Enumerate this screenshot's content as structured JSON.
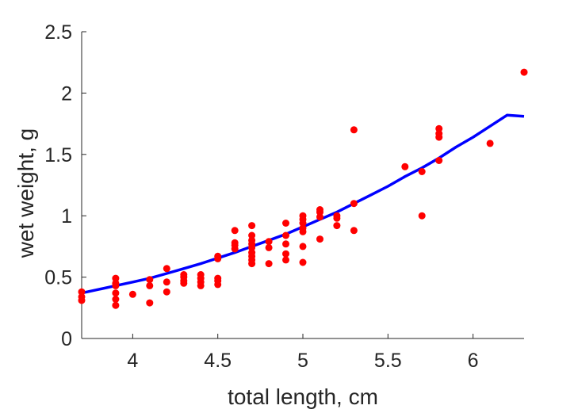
{
  "chart_data": {
    "type": "scatter",
    "xlabel": "total length, cm",
    "ylabel": "wet weight, g",
    "xlim": [
      3.7,
      6.3
    ],
    "ylim": [
      0,
      2.5
    ],
    "xticks": [
      4,
      4.5,
      5,
      5.5,
      6
    ],
    "xtick_labels": [
      "4",
      "4.5",
      "5",
      "5.5",
      "6"
    ],
    "yticks": [
      0,
      0.5,
      1,
      1.5,
      2,
      2.5
    ],
    "ytick_labels": [
      "0",
      "0.5",
      "1",
      "1.5",
      "2",
      "2.5"
    ],
    "grid": false,
    "box": false,
    "colors": {
      "points": "#ff0000",
      "fit": "#0000ff",
      "axes": "#262626"
    },
    "series": [
      {
        "type": "scatter",
        "points": [
          [
            3.7,
            0.31
          ],
          [
            3.7,
            0.34
          ],
          [
            3.7,
            0.38
          ],
          [
            3.9,
            0.27
          ],
          [
            3.9,
            0.32
          ],
          [
            3.9,
            0.37
          ],
          [
            3.9,
            0.43
          ],
          [
            3.9,
            0.45
          ],
          [
            3.9,
            0.49
          ],
          [
            4.0,
            0.36
          ],
          [
            4.1,
            0.29
          ],
          [
            4.1,
            0.43
          ],
          [
            4.1,
            0.48
          ],
          [
            4.2,
            0.38
          ],
          [
            4.2,
            0.46
          ],
          [
            4.2,
            0.57
          ],
          [
            4.3,
            0.45
          ],
          [
            4.3,
            0.47
          ],
          [
            4.3,
            0.5
          ],
          [
            4.3,
            0.52
          ],
          [
            4.4,
            0.43
          ],
          [
            4.4,
            0.46
          ],
          [
            4.4,
            0.49
          ],
          [
            4.4,
            0.52
          ],
          [
            4.5,
            0.44
          ],
          [
            4.5,
            0.47
          ],
          [
            4.5,
            0.49
          ],
          [
            4.5,
            0.65
          ],
          [
            4.5,
            0.67
          ],
          [
            4.6,
            0.73
          ],
          [
            4.6,
            0.76
          ],
          [
            4.6,
            0.78
          ],
          [
            4.6,
            0.88
          ],
          [
            4.7,
            0.61
          ],
          [
            4.7,
            0.64
          ],
          [
            4.7,
            0.67
          ],
          [
            4.7,
            0.7
          ],
          [
            4.7,
            0.74
          ],
          [
            4.7,
            0.77
          ],
          [
            4.7,
            0.8
          ],
          [
            4.7,
            0.84
          ],
          [
            4.7,
            0.92
          ],
          [
            4.8,
            0.61
          ],
          [
            4.8,
            0.74
          ],
          [
            4.8,
            0.79
          ],
          [
            4.9,
            0.64
          ],
          [
            4.9,
            0.69
          ],
          [
            4.9,
            0.77
          ],
          [
            4.9,
            0.84
          ],
          [
            4.9,
            0.94
          ],
          [
            5.0,
            0.62
          ],
          [
            5.0,
            0.75
          ],
          [
            5.0,
            0.87
          ],
          [
            5.0,
            0.9
          ],
          [
            5.0,
            0.94
          ],
          [
            5.0,
            0.97
          ],
          [
            5.0,
            1.0
          ],
          [
            5.1,
            0.81
          ],
          [
            5.1,
            0.99
          ],
          [
            5.1,
            1.03
          ],
          [
            5.1,
            1.05
          ],
          [
            5.2,
            0.92
          ],
          [
            5.2,
            0.98
          ],
          [
            5.2,
            1.0
          ],
          [
            5.3,
            0.88
          ],
          [
            5.3,
            1.1
          ],
          [
            5.3,
            1.7
          ],
          [
            5.6,
            1.4
          ],
          [
            5.7,
            1.0
          ],
          [
            5.7,
            1.36
          ],
          [
            5.8,
            1.45
          ],
          [
            5.8,
            1.64
          ],
          [
            5.8,
            1.67
          ],
          [
            5.8,
            1.71
          ],
          [
            6.1,
            1.59
          ],
          [
            6.3,
            2.17
          ]
        ]
      },
      {
        "type": "line",
        "points": [
          [
            3.7,
            0.37
          ],
          [
            3.8,
            0.4
          ],
          [
            3.9,
            0.43
          ],
          [
            4.0,
            0.46
          ],
          [
            4.1,
            0.49
          ],
          [
            4.2,
            0.53
          ],
          [
            4.3,
            0.57
          ],
          [
            4.4,
            0.61
          ],
          [
            4.5,
            0.655
          ],
          [
            4.6,
            0.7
          ],
          [
            4.7,
            0.75
          ],
          [
            4.8,
            0.8
          ],
          [
            4.9,
            0.85
          ],
          [
            5.0,
            0.91
          ],
          [
            5.1,
            0.97
          ],
          [
            5.2,
            1.03
          ],
          [
            5.3,
            1.1
          ],
          [
            5.4,
            1.17
          ],
          [
            5.5,
            1.24
          ],
          [
            5.6,
            1.32
          ],
          [
            5.7,
            1.39
          ],
          [
            5.8,
            1.47
          ],
          [
            5.9,
            1.56
          ],
          [
            6.0,
            1.64
          ],
          [
            6.1,
            1.73
          ],
          [
            6.2,
            1.82
          ],
          [
            6.3,
            1.81
          ]
        ]
      }
    ]
  }
}
